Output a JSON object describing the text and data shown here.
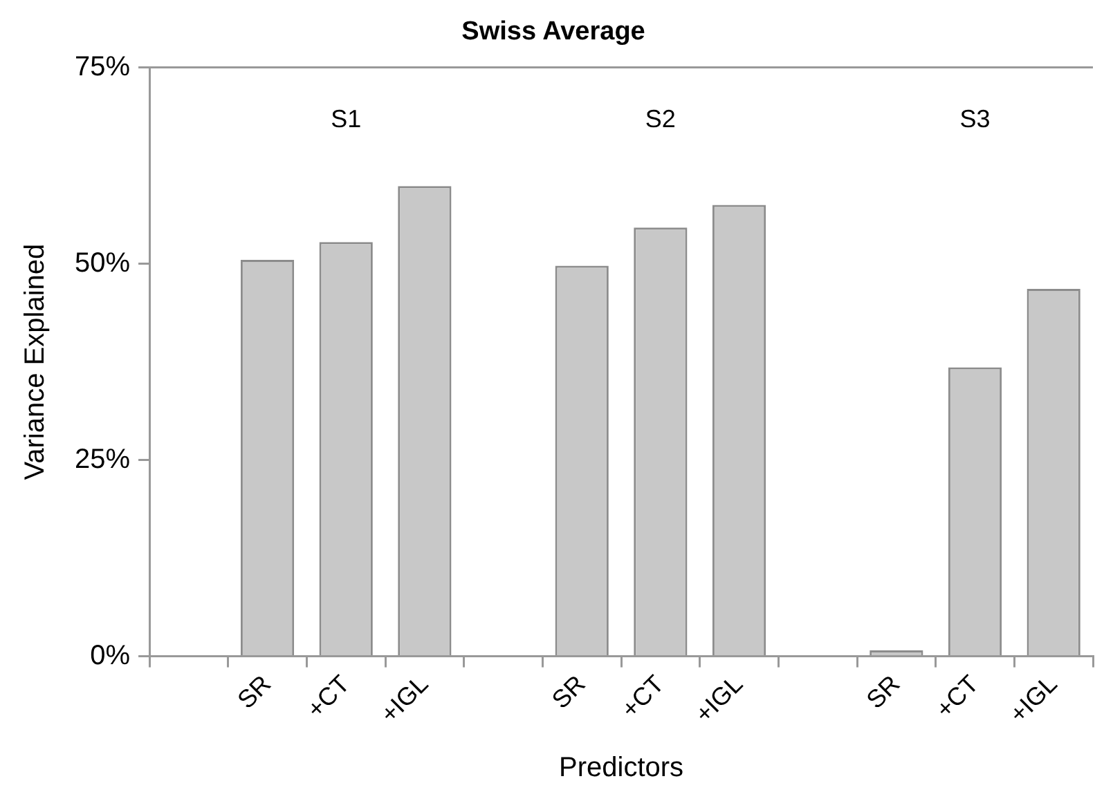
{
  "chart_data": {
    "type": "bar",
    "title": "Swiss Average",
    "xlabel": "Predictors",
    "ylabel": "Variance Explained",
    "categories": [
      null,
      "SR",
      "+CT",
      "+IGL",
      null,
      "SR",
      "+CT",
      "+IGL",
      null,
      "SR",
      "+CT",
      "+IGL"
    ],
    "values": [
      null,
      50.5,
      52.75,
      59.9,
      null,
      49.75,
      54.6,
      57.5,
      null,
      0.75,
      36.8,
      46.8
    ],
    "color": "#c8c8c8",
    "ylim": [
      0,
      75
    ],
    "yticks": [
      {
        "value": 0,
        "label": "0%"
      },
      {
        "value": 25,
        "label": "25%"
      },
      {
        "value": 50,
        "label": "50%"
      },
      {
        "value": 75,
        "label": "75%"
      }
    ],
    "annotations": [
      "S1",
      "S2",
      "S3"
    ],
    "grid": false,
    "legend": false
  }
}
